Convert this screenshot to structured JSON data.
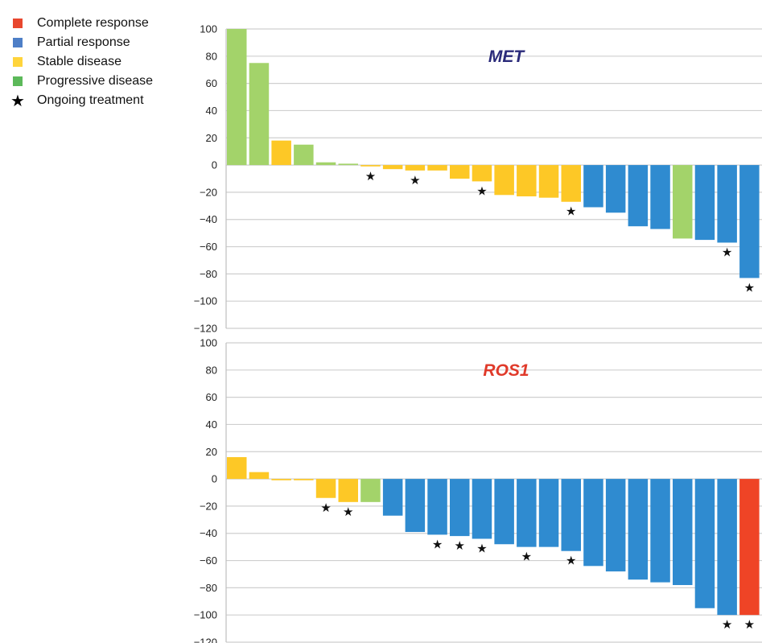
{
  "legend": {
    "items": [
      {
        "label": "Complete response",
        "color": "#e8472e",
        "icon": "square"
      },
      {
        "label": "Partial response",
        "color": "#4e7fc7",
        "icon": "square"
      },
      {
        "label": "Stable disease",
        "color": "#ffd43b",
        "icon": "square"
      },
      {
        "label": "Progressive disease",
        "color": "#5cb95a",
        "icon": "square"
      },
      {
        "label": "Ongoing treatment",
        "color": "#000000",
        "icon": "star-icon"
      }
    ]
  },
  "colors": {
    "complete": "#ef4426",
    "partial": "#2f8bd0",
    "stable": "#fdc826",
    "progressive": "#a3d36a",
    "grid": "#cfcfcf",
    "axis": "#bfbfbf"
  },
  "chart_data": [
    {
      "type": "bar",
      "title": "MET",
      "title_color": "#2a2a7a",
      "ylim": [
        -120,
        100
      ],
      "yticks": [
        100,
        80,
        60,
        40,
        20,
        0,
        -20,
        -40,
        -60,
        -80,
        -100,
        -120
      ],
      "ytick_labels": [
        "100",
        "80",
        "60",
        "40",
        "20",
        "0",
        "−20",
        "−40",
        "−60",
        "−80",
        "−100",
        "−120"
      ],
      "grid": true,
      "legend_position": "top-left",
      "values": [
        100,
        75,
        18,
        15,
        2,
        1,
        -1,
        -3,
        -4,
        -4,
        -10,
        -12,
        -22,
        -23,
        -24,
        -27,
        -31,
        -35,
        -45,
        -47,
        -54,
        -55,
        -57,
        -83
      ],
      "responses": [
        "progressive",
        "progressive",
        "stable",
        "progressive",
        "progressive",
        "progressive",
        "stable",
        "stable",
        "stable",
        "stable",
        "stable",
        "stable",
        "stable",
        "stable",
        "stable",
        "stable",
        "partial",
        "partial",
        "partial",
        "partial",
        "progressive",
        "partial",
        "partial",
        "partial"
      ],
      "ongoing": [
        false,
        false,
        false,
        false,
        false,
        false,
        true,
        false,
        true,
        false,
        false,
        true,
        false,
        false,
        false,
        true,
        false,
        false,
        false,
        false,
        false,
        false,
        true,
        true
      ]
    },
    {
      "type": "bar",
      "title": "ROS1",
      "title_color": "#e03a2a",
      "ylim": [
        -120,
        100
      ],
      "yticks": [
        100,
        80,
        60,
        40,
        20,
        0,
        -20,
        -40,
        -60,
        -80,
        -100,
        -120
      ],
      "ytick_labels": [
        "100",
        "80",
        "60",
        "40",
        "20",
        "0",
        "−20",
        "−40",
        "−60",
        "−80",
        "−100",
        "−120"
      ],
      "grid": true,
      "values": [
        16,
        5,
        -1,
        -1,
        -14,
        -17,
        -17,
        -27,
        -39,
        -41,
        -42,
        -44,
        -48,
        -50,
        -50,
        -53,
        -64,
        -68,
        -74,
        -76,
        -78,
        -95,
        -100,
        -100
      ],
      "responses": [
        "stable",
        "stable",
        "stable",
        "stable",
        "stable",
        "stable",
        "progressive",
        "partial",
        "partial",
        "partial",
        "partial",
        "partial",
        "partial",
        "partial",
        "partial",
        "partial",
        "partial",
        "partial",
        "partial",
        "partial",
        "partial",
        "partial",
        "partial",
        "complete"
      ],
      "ongoing": [
        false,
        false,
        false,
        false,
        true,
        true,
        false,
        false,
        false,
        true,
        true,
        true,
        false,
        true,
        false,
        true,
        false,
        false,
        false,
        false,
        false,
        false,
        true,
        true
      ]
    }
  ]
}
